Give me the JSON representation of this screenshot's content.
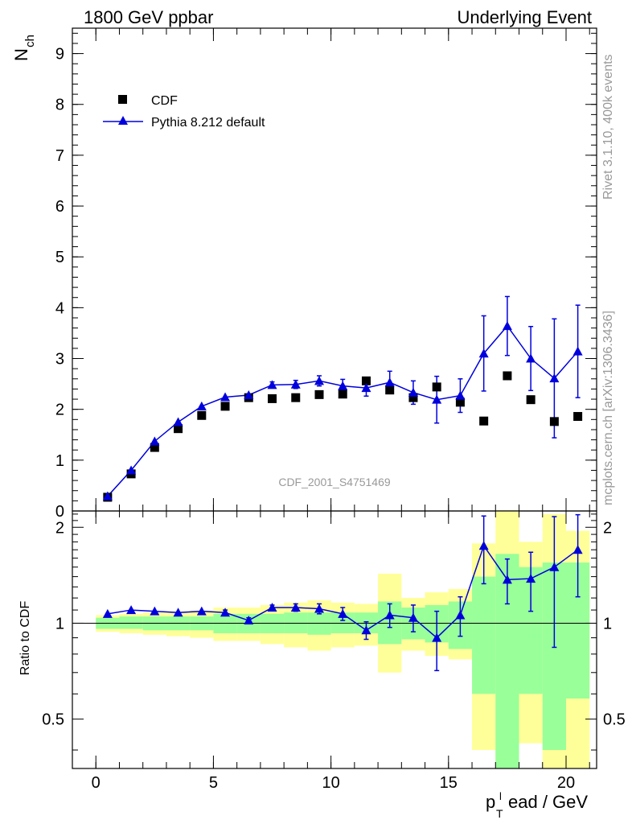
{
  "header": {
    "left": "1800 GeV ppbar",
    "right": "Underlying Event",
    "side_top": "Rivet 3.1.10,  400k events",
    "side_bottom": "mcplots.cern.ch [arXiv:1306.3436]",
    "watermark": "CDF_2001_S4751469"
  },
  "colors": {
    "data": "#000000",
    "mc": "#0000dd",
    "band_inner": "#99ff99",
    "band_outer": "#ffff99",
    "frame": "#000000",
    "watermark": "#999999"
  },
  "chart_data": [
    {
      "type": "scatter",
      "panel": "main",
      "ylabel_main": "N",
      "ylabel_sub": "ch",
      "xlim": [
        -1,
        21.3
      ],
      "ylim": [
        0,
        9.5
      ],
      "yticks": [
        0,
        1,
        2,
        3,
        4,
        5,
        6,
        7,
        8,
        9
      ],
      "legend_position": "top-left",
      "series": [
        {
          "name": "CDF",
          "marker": "square",
          "x": [
            0.5,
            1.5,
            2.5,
            3.5,
            4.5,
            5.5,
            6.5,
            7.5,
            8.5,
            9.5,
            10.5,
            11.5,
            12.5,
            13.5,
            14.5,
            15.5,
            16.5,
            17.5,
            18.5,
            19.5,
            20.5
          ],
          "y": [
            0.27,
            0.73,
            1.25,
            1.62,
            1.88,
            2.06,
            2.23,
            2.21,
            2.23,
            2.29,
            2.3,
            2.56,
            2.38,
            2.23,
            2.44,
            2.14,
            1.77,
            2.66,
            2.19,
            1.76,
            1.86
          ]
        },
        {
          "name": "Pythia 8.212 default",
          "marker": "triangle",
          "x": [
            0.5,
            1.5,
            2.5,
            3.5,
            4.5,
            5.5,
            6.5,
            7.5,
            8.5,
            9.5,
            10.5,
            11.5,
            12.5,
            13.5,
            14.5,
            15.5,
            16.5,
            17.5,
            18.5,
            19.5,
            20.5
          ],
          "y": [
            0.29,
            0.8,
            1.37,
            1.75,
            2.06,
            2.24,
            2.28,
            2.48,
            2.49,
            2.56,
            2.46,
            2.42,
            2.53,
            2.33,
            2.19,
            2.27,
            3.1,
            3.64,
            3.0,
            2.61,
            3.14
          ],
          "err": [
            0.01,
            0.02,
            0.03,
            0.03,
            0.04,
            0.04,
            0.05,
            0.06,
            0.08,
            0.1,
            0.13,
            0.16,
            0.22,
            0.23,
            0.46,
            0.33,
            0.74,
            0.58,
            0.63,
            1.17,
            0.91
          ]
        }
      ]
    },
    {
      "type": "scatter",
      "panel": "ratio",
      "ylabel": "Ratio to CDF",
      "xlabel_main": "p",
      "xlabel_sub": "T",
      "xlabel_sup": "l",
      "xlabel_rest": "ead / GeV",
      "xlim": [
        -1,
        21.3
      ],
      "ylim": [
        0.35,
        2.25
      ],
      "yticks": [
        0.5,
        1,
        2
      ],
      "xticks": [
        0,
        5,
        10,
        15,
        20
      ],
      "bands": {
        "x_low": [
          0,
          1,
          2,
          3,
          4,
          5,
          6,
          7,
          8,
          9,
          10,
          11,
          12,
          13,
          14,
          15,
          16,
          17,
          18,
          19,
          20
        ],
        "x_high": [
          1,
          2,
          3,
          4,
          5,
          6,
          7,
          8,
          9,
          10,
          11,
          12,
          13,
          14,
          15,
          16,
          17,
          18,
          19,
          20,
          21
        ],
        "inner_low": [
          0.96,
          0.96,
          0.95,
          0.95,
          0.95,
          0.93,
          0.93,
          0.93,
          0.93,
          0.92,
          0.93,
          0.93,
          0.86,
          0.89,
          0.87,
          0.83,
          0.6,
          0.35,
          0.6,
          0.4,
          0.58
        ],
        "inner_high": [
          1.04,
          1.05,
          1.05,
          1.05,
          1.05,
          1.07,
          1.07,
          1.07,
          1.08,
          1.08,
          1.08,
          1.08,
          1.17,
          1.12,
          1.14,
          1.17,
          1.4,
          1.65,
          1.5,
          1.55,
          1.55
        ],
        "outer_low": [
          0.94,
          0.93,
          0.92,
          0.91,
          0.9,
          0.88,
          0.88,
          0.86,
          0.84,
          0.82,
          0.84,
          0.85,
          0.7,
          0.82,
          0.79,
          0.77,
          0.4,
          0.35,
          0.42,
          0.35,
          0.35
        ],
        "outer_high": [
          1.06,
          1.07,
          1.08,
          1.09,
          1.1,
          1.12,
          1.12,
          1.14,
          1.16,
          1.18,
          1.16,
          1.15,
          1.43,
          1.2,
          1.25,
          1.28,
          1.78,
          2.25,
          1.8,
          2.2,
          1.95
        ]
      },
      "series": [
        {
          "name": "Pythia 8.212 default",
          "x": [
            0.5,
            1.5,
            2.5,
            3.5,
            4.5,
            5.5,
            6.5,
            7.5,
            8.5,
            9.5,
            10.5,
            11.5,
            12.5,
            13.5,
            14.5,
            15.5,
            16.5,
            17.5,
            18.5,
            19.5,
            20.5
          ],
          "y": [
            1.07,
            1.1,
            1.09,
            1.08,
            1.09,
            1.08,
            1.02,
            1.12,
            1.12,
            1.11,
            1.07,
            0.95,
            1.06,
            1.04,
            0.9,
            1.06,
            1.75,
            1.37,
            1.38,
            1.5,
            1.7
          ],
          "err": [
            0.01,
            0.01,
            0.01,
            0.01,
            0.01,
            0.02,
            0.02,
            0.02,
            0.03,
            0.04,
            0.05,
            0.06,
            0.09,
            0.1,
            0.19,
            0.15,
            0.42,
            0.22,
            0.29,
            0.66,
            0.49
          ]
        }
      ]
    }
  ]
}
